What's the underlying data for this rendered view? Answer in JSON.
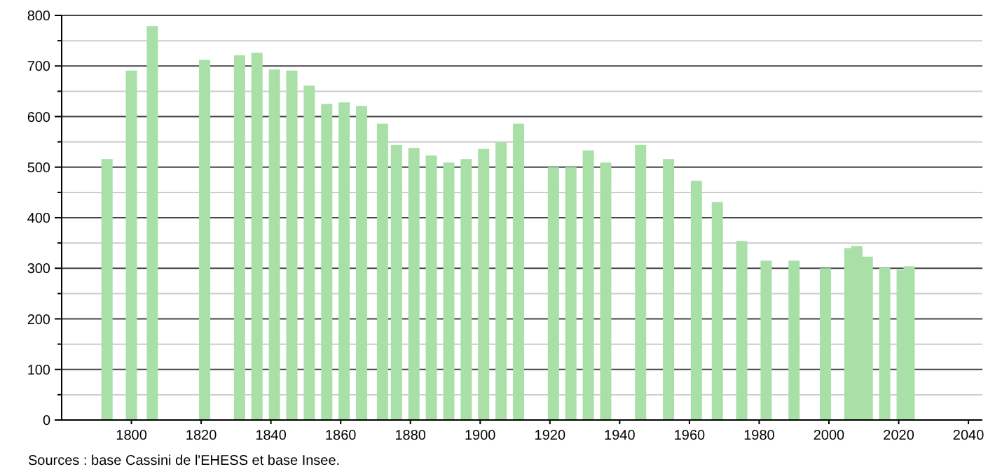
{
  "chart_data": {
    "type": "bar",
    "x": [
      1793,
      1800,
      1806,
      1821,
      1831,
      1836,
      1841,
      1846,
      1851,
      1856,
      1861,
      1866,
      1872,
      1876,
      1881,
      1886,
      1891,
      1896,
      1901,
      1906,
      1911,
      1921,
      1926,
      1931,
      1936,
      1946,
      1954,
      1962,
      1968,
      1975,
      1982,
      1990,
      1999,
      2006,
      2008,
      2011,
      2016,
      2021,
      2023
    ],
    "values": [
      516,
      691,
      779,
      712,
      721,
      726,
      693,
      691,
      661,
      625,
      628,
      621,
      586,
      544,
      538,
      523,
      509,
      516,
      536,
      549,
      586,
      500,
      500,
      533,
      509,
      544,
      516,
      473,
      431,
      354,
      315,
      315,
      300,
      340,
      344,
      323,
      301,
      297,
      304
    ],
    "color": "#a8e0a8",
    "xlim": [
      1780,
      2044
    ],
    "xticks": [
      1800,
      1820,
      1840,
      1860,
      1880,
      1900,
      1920,
      1940,
      1960,
      1980,
      2000,
      2020,
      2040
    ],
    "ylim": [
      0,
      800
    ],
    "yticks": [
      0,
      {
        "value": 50,
        "label": null
      },
      100,
      {
        "value": 150,
        "label": null
      },
      200,
      {
        "value": 250,
        "label": null
      },
      300,
      {
        "value": 350,
        "label": null
      },
      400,
      {
        "value": 450,
        "label": null
      },
      500,
      {
        "value": 550,
        "label": null
      },
      600,
      {
        "value": 650,
        "label": null
      },
      700,
      {
        "value": 750,
        "label": null
      },
      800
    ],
    "grid": "y",
    "annotations": [
      "Sources : base Cassini de l'EHESS et base Insee."
    ]
  }
}
